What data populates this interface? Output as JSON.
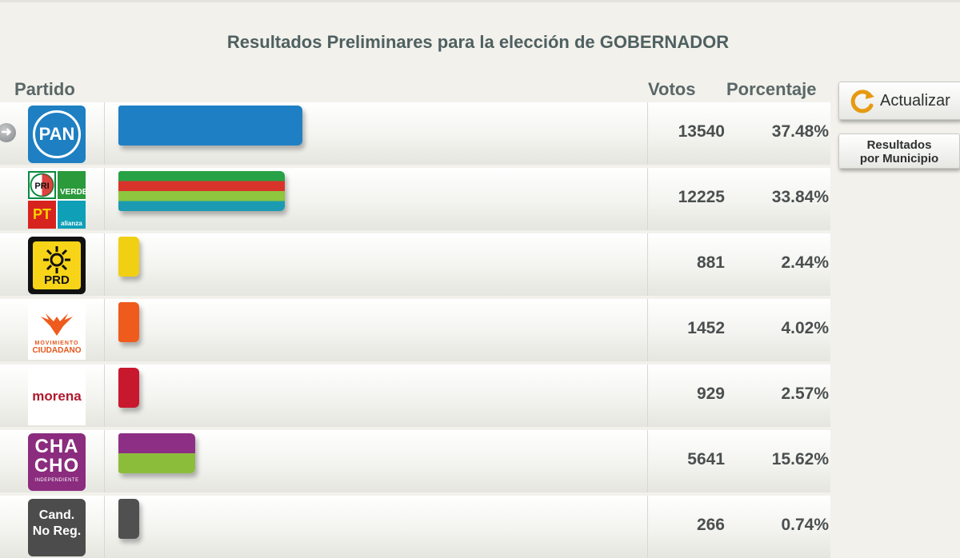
{
  "title": "Resultados Preliminares para la elección de GOBERNADOR",
  "headers": {
    "partido": "Partido",
    "votos": "Votos",
    "porcentaje": "Porcentaje"
  },
  "buttons": {
    "actualizar": "Actualizar",
    "municipio_line1": "Resultados",
    "municipio_line2": "por Municipio"
  },
  "logos": {
    "pan": "PAN",
    "coalition": {
      "pri": "PRI",
      "verde": "VERDE",
      "pt": "PT",
      "na": "alianza"
    },
    "prd": "PRD",
    "mc_small": "MOVIMIENTO",
    "mc_big": "CIUDADANO",
    "morena": "morena",
    "chacho_1": "CHA",
    "chacho_2": "CHO",
    "chacho_3": "INDEPENDIENTE",
    "cand_1": "Cand.",
    "cand_2": "No Reg."
  },
  "chart_data": {
    "type": "bar",
    "orientation": "horizontal",
    "title": "Resultados Preliminares para la elección de GOBERNADOR",
    "xmax": 13540,
    "rows": [
      {
        "party": "PAN",
        "votes": 13540,
        "votes_label": "13540",
        "percent": "37.48%",
        "colors": [
          "#1f7fc5"
        ]
      },
      {
        "party": "PRI-PVEM-PT-NA",
        "votes": 12225,
        "votes_label": "12225",
        "percent": "33.84%",
        "colors": [
          "#27a246",
          "#d8342b",
          "#8ec63f",
          "#1b9ab1"
        ]
      },
      {
        "party": "PRD",
        "votes": 881,
        "votes_label": "881",
        "percent": "2.44%",
        "colors": [
          "#f1cf12"
        ]
      },
      {
        "party": "MOVIMIENTO CIUDADANO",
        "votes": 1452,
        "votes_label": "1452",
        "percent": "4.02%",
        "colors": [
          "#ee5b1c"
        ]
      },
      {
        "party": "morena",
        "votes": 929,
        "votes_label": "929",
        "percent": "2.57%",
        "colors": [
          "#c8182d"
        ]
      },
      {
        "party": "CHACHO",
        "votes": 5641,
        "votes_label": "5641",
        "percent": "15.62%",
        "colors": [
          "#8d2f84",
          "#8bbd3b"
        ]
      },
      {
        "party": "Cand. No Reg.",
        "votes": 266,
        "votes_label": "266",
        "percent": "0.74%",
        "colors": [
          "#505050"
        ]
      }
    ]
  }
}
